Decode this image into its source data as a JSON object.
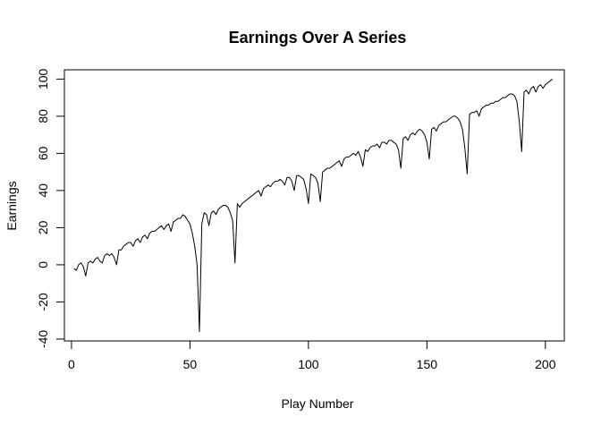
{
  "chart_data": {
    "type": "line",
    "title": "Earnings Over A Series",
    "xlabel": "Play Number",
    "ylabel": "Earnings",
    "xlim": [
      -3,
      208
    ],
    "ylim": [
      -41,
      105
    ],
    "x_ticks": [
      0,
      50,
      100,
      150,
      200
    ],
    "y_ticks": [
      -40,
      -20,
      0,
      20,
      40,
      60,
      80,
      100
    ],
    "grid": false,
    "legend": "none",
    "colors": {
      "line": "#000000",
      "axis": "#000000",
      "background": "#ffffff"
    },
    "series": [
      {
        "x": [
          1,
          2,
          3,
          4,
          5,
          6,
          7,
          8,
          9,
          10,
          11,
          12,
          13,
          14,
          15,
          16,
          17,
          18,
          19,
          20,
          21,
          22,
          23,
          24,
          25,
          26,
          27,
          28,
          29,
          30,
          31,
          32,
          33,
          34,
          35,
          36,
          37,
          38,
          39,
          40,
          41,
          42,
          43,
          44,
          45,
          46,
          47,
          48,
          49,
          50,
          51,
          52,
          53,
          54,
          55,
          56,
          57,
          58,
          59,
          60,
          61,
          62,
          63,
          64,
          65,
          66,
          67,
          68,
          69,
          70,
          71,
          72,
          73,
          74,
          75,
          76,
          77,
          78,
          79,
          80,
          81,
          82,
          83,
          84,
          85,
          86,
          87,
          88,
          89,
          90,
          91,
          92,
          93,
          94,
          95,
          96,
          97,
          98,
          99,
          100,
          101,
          102,
          103,
          104,
          105,
          106,
          107,
          108,
          109,
          110,
          111,
          112,
          113,
          114,
          115,
          116,
          117,
          118,
          119,
          120,
          121,
          122,
          123,
          124,
          125,
          126,
          127,
          128,
          129,
          130,
          131,
          132,
          133,
          134,
          135,
          136,
          137,
          138,
          139,
          140,
          141,
          142,
          143,
          144,
          145,
          146,
          147,
          148,
          149,
          150,
          151,
          152,
          153,
          154,
          155,
          156,
          157,
          158,
          159,
          160,
          161,
          162,
          163,
          164,
          165,
          166,
          167,
          168,
          169,
          170,
          171,
          172,
          173,
          174,
          175,
          176,
          177,
          178,
          179,
          180,
          181,
          182,
          183,
          184,
          185,
          186,
          187,
          188,
          189,
          190,
          191,
          192,
          193,
          194,
          195,
          196,
          197,
          198,
          199,
          200,
          201,
          202,
          203
        ],
        "values": [
          -2,
          -3,
          0,
          1,
          -1,
          -6,
          1,
          2,
          1,
          3,
          4,
          2,
          1,
          5,
          6,
          5,
          6,
          4,
          0,
          8,
          8,
          10,
          11,
          12,
          12,
          10,
          13,
          14,
          12,
          15,
          16,
          14,
          17,
          18,
          18,
          19,
          20,
          21,
          19,
          21,
          22,
          18,
          23,
          24,
          25,
          25,
          27,
          26,
          24,
          22,
          17,
          10,
          0,
          -36,
          22,
          28,
          27,
          21,
          28,
          29,
          27,
          30,
          31,
          32,
          32,
          31,
          28,
          24,
          1,
          33,
          31,
          33,
          34,
          35,
          36,
          37,
          38,
          39,
          40,
          37,
          41,
          42,
          43,
          42,
          44,
          45,
          45,
          46,
          45,
          43,
          47,
          47,
          45,
          40,
          48,
          48,
          47,
          46,
          41,
          33,
          49,
          48,
          47,
          44,
          34,
          50,
          51,
          52,
          52,
          53,
          54,
          55,
          56,
          53,
          57,
          58,
          58,
          59,
          60,
          59,
          61,
          58,
          53,
          62,
          61,
          63,
          64,
          64,
          65,
          63,
          66,
          66,
          65,
          67,
          67,
          66,
          65,
          62,
          52,
          68,
          69,
          67,
          70,
          71,
          70,
          72,
          73,
          72,
          70,
          66,
          57,
          73,
          74,
          72,
          75,
          76,
          77,
          77,
          78,
          79,
          80,
          80,
          79,
          77,
          73,
          63,
          49,
          81,
          82,
          82,
          83,
          80,
          84,
          85,
          86,
          86,
          87,
          87,
          88,
          88,
          89,
          90,
          90,
          91,
          92,
          92,
          91,
          88,
          77,
          61,
          93,
          94,
          92,
          95,
          96,
          93,
          96,
          97,
          95,
          97,
          98,
          99,
          100
        ]
      }
    ]
  }
}
